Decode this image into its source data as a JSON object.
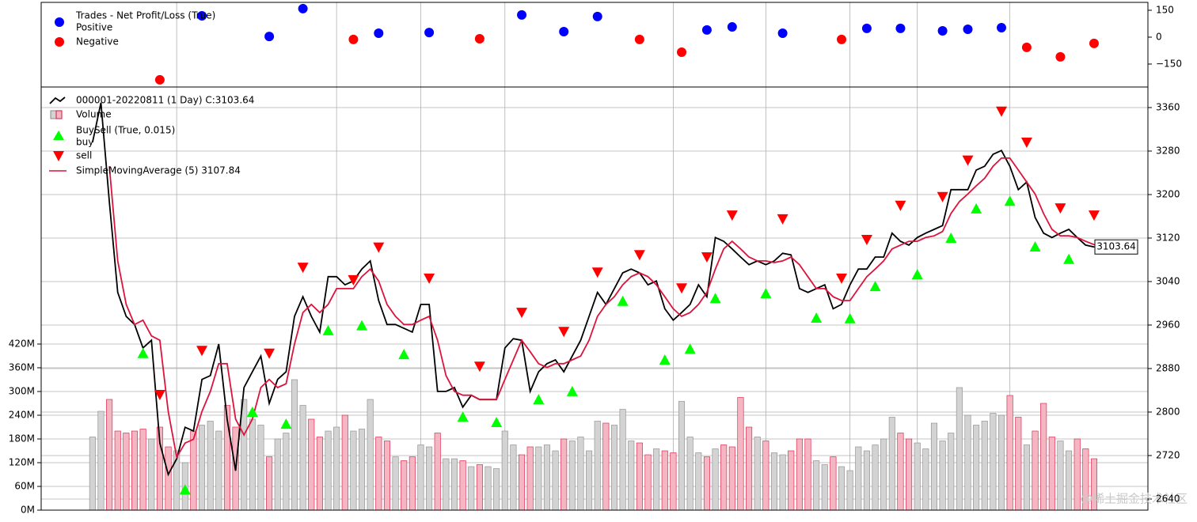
{
  "chart_data": [
    {
      "type": "scatter",
      "legend_title": "Trades - Net Profit/Loss (True)",
      "legend": "upper left",
      "xlim": [
        -6.1,
        125.4
      ],
      "ylim": [
        -278,
        194
      ],
      "yticks": [
        150,
        0,
        {
          "value": -150,
          "label": "−150"
        }
      ],
      "series": [
        {
          "name": "Positive",
          "color": "#0000ff",
          "x": [
            13,
            21,
            25,
            34,
            40,
            51,
            56,
            60,
            73,
            76,
            82,
            92,
            96,
            101,
            104,
            108
          ],
          "values": [
            119,
            4,
            159,
            22,
            26,
            124,
            31,
            115,
            40,
            57,
            22,
            49,
            49,
            35,
            44,
            53
          ]
        },
        {
          "name": "Negative",
          "color": "#ff0000",
          "x": [
            8,
            31,
            46,
            65,
            70,
            89,
            111,
            115,
            119
          ],
          "values": [
            -238,
            -13,
            -9,
            -13,
            -84,
            -13,
            -57,
            -110,
            -35
          ]
        }
      ]
    },
    {
      "type": "line",
      "legend": "upper left",
      "grid": true,
      "xlim": [
        -6.1,
        125.4
      ],
      "xticks": [
        10,
        29,
        39,
        49,
        69,
        80,
        90,
        98,
        109
      ],
      "ylim": [
        2619.6,
        3397.8
      ],
      "yticks": [
        2640,
        2720,
        2800,
        2880,
        2960,
        3040,
        3120,
        3200,
        3280,
        3360
      ],
      "y2lim": [
        0,
        1070
      ],
      "y2ticks": [
        {
          "value": 0,
          "label": "0M"
        },
        {
          "value": 60,
          "label": "60M"
        },
        {
          "value": 120,
          "label": "120M"
        },
        {
          "value": 180,
          "label": "180M"
        },
        {
          "value": 240,
          "label": "240M"
        },
        {
          "value": 300,
          "label": "300M"
        },
        {
          "value": 360,
          "label": "360M"
        },
        {
          "value": 420,
          "label": "420M"
        }
      ],
      "buysell_label": "BuySell (True, 0.015)",
      "last_label": "3103.64",
      "watermark": "@稀土掘金技术社区",
      "x": [
        0,
        1,
        2,
        3,
        4,
        5,
        6,
        7,
        8,
        9,
        10,
        11,
        12,
        13,
        14,
        15,
        16,
        17,
        18,
        19,
        20,
        21,
        22,
        23,
        24,
        25,
        26,
        27,
        28,
        29,
        30,
        31,
        32,
        33,
        34,
        35,
        36,
        37,
        38,
        39,
        40,
        41,
        42,
        43,
        44,
        45,
        46,
        47,
        48,
        49,
        50,
        51,
        52,
        53,
        54,
        55,
        56,
        57,
        58,
        59,
        60,
        61,
        62,
        63,
        64,
        65,
        66,
        67,
        68,
        69,
        70,
        71,
        72,
        73,
        74,
        75,
        76,
        77,
        78,
        79,
        80,
        81,
        82,
        83,
        84,
        85,
        86,
        87,
        88,
        89,
        90,
        91,
        92,
        93,
        94,
        95,
        96,
        97,
        98,
        99,
        100,
        101,
        102,
        103,
        104,
        105,
        106,
        107,
        108,
        109,
        110,
        111,
        112,
        113,
        114,
        115,
        116,
        117,
        118,
        119
      ],
      "series": [
        {
          "name": "000001-20220811 (1 Day) C:3103.64",
          "kind": "line",
          "color": "#000000",
          "values": [
            3296,
            3369,
            3187,
            3020,
            2976,
            2961,
            2918,
            2932,
            2743,
            2685,
            2714,
            2772,
            2765,
            2860,
            2867,
            2925,
            2787,
            2692,
            2845,
            2874,
            2903,
            2816,
            2860,
            2874,
            2976,
            3012,
            2976,
            2947,
            3049,
            3049,
            3034,
            3041,
            3063,
            3078,
            3005,
            2961,
            2961,
            2954,
            2947,
            2998,
            2998,
            2838,
            2838,
            2845,
            2809,
            2831,
            2823,
            2823,
            2823,
            2918,
            2935,
            2932,
            2838,
            2874,
            2889,
            2896,
            2874,
            2903,
            2932,
            2976,
            3020,
            2998,
            3027,
            3056,
            3063,
            3056,
            3034,
            3041,
            2990,
            2969,
            2983,
            2998,
            3034,
            3012,
            3121,
            3114,
            3100,
            3085,
            3071,
            3078,
            3071,
            3078,
            3092,
            3089,
            3027,
            3020,
            3027,
            3034,
            2990,
            2998,
            3034,
            3063,
            3063,
            3085,
            3085,
            3129,
            3114,
            3107,
            3121,
            3129,
            3136,
            3143,
            3209,
            3209,
            3209,
            3245,
            3252,
            3274,
            3281,
            3252,
            3209,
            3223,
            3158,
            3129,
            3121,
            3129,
            3136,
            3121,
            3107,
            3103.64
          ]
        },
        {
          "name": "Volume",
          "kind": "bar",
          "axis": "y2",
          "color": "#d3d3d3",
          "down_color": "#f4b6c2",
          "values": [
            185,
            250,
            280,
            200,
            195,
            200,
            205,
            180,
            210,
            160,
            150,
            120,
            200,
            215,
            225,
            200,
            265,
            210,
            280,
            230,
            215,
            135,
            180,
            195,
            330,
            265,
            230,
            185,
            200,
            210,
            240,
            200,
            205,
            280,
            185,
            175,
            135,
            125,
            135,
            165,
            160,
            195,
            130,
            130,
            125,
            110,
            115,
            110,
            105,
            200,
            165,
            140,
            160,
            160,
            165,
            150,
            180,
            175,
            185,
            150,
            225,
            220,
            215,
            255,
            175,
            170,
            140,
            155,
            150,
            145,
            275,
            185,
            145,
            135,
            155,
            165,
            160,
            285,
            210,
            185,
            175,
            145,
            140,
            150,
            180,
            180,
            125,
            115,
            135,
            110,
            100,
            160,
            150,
            165,
            180,
            235,
            195,
            180,
            170,
            155,
            220,
            175,
            195,
            310,
            240,
            215,
            225,
            245,
            240,
            290,
            235,
            165,
            200,
            270,
            185,
            175,
            150,
            180,
            155,
            130
          ]
        },
        {
          "name": "buy",
          "kind": "marker",
          "marker": "up",
          "color": "#00ff00",
          "x": [
            6,
            11,
            19,
            23,
            28,
            32,
            37,
            44,
            48,
            53,
            57,
            63,
            68,
            71,
            74,
            80,
            86,
            90,
            93,
            98,
            102,
            105,
            109,
            112,
            116
          ],
          "values": [
            2908,
            2657,
            2800,
            2778,
            2950,
            2959,
            2906,
            2791,
            2781,
            2823,
            2838,
            3004,
            2896,
            2916,
            3009,
            3018,
            2973,
            2972,
            3031,
            3053,
            3120,
            3174,
            3188,
            3104,
            3081
          ]
        },
        {
          "name": "sell",
          "kind": "marker",
          "marker": "down",
          "color": "#ff0000",
          "x": [
            8,
            13,
            21,
            25,
            31,
            34,
            40,
            46,
            51,
            56,
            60,
            65,
            70,
            73,
            76,
            82,
            89,
            92,
            96,
            101,
            104,
            108,
            111,
            115,
            119
          ],
          "values": [
            2832,
            2913,
            2908,
            3066,
            3043,
            3103,
            3046,
            2884,
            2983,
            2948,
            3057,
            3089,
            3028,
            3085,
            3162,
            3155,
            3046,
            3117,
            3180,
            3196,
            3263,
            3353,
            3296,
            3175,
            3162
          ]
        },
        {
          "name": "SimpleMovingAverage (5) 3107.84",
          "kind": "line",
          "color": "#dc143c",
          "values": [
            null,
            null,
            3252,
            3078,
            2998,
            2961,
            2969,
            2940,
            2932,
            2801,
            2717,
            2743,
            2750,
            2801,
            2838,
            2889,
            2889,
            2787,
            2758,
            2787,
            2845,
            2860,
            2845,
            2852,
            2925,
            2983,
            2998,
            2983,
            2998,
            3027,
            3027,
            3027,
            3049,
            3063,
            3041,
            2998,
            2976,
            2961,
            2961,
            2969,
            2976,
            2932,
            2867,
            2838,
            2831,
            2831,
            2823,
            2823,
            2823,
            2860,
            2896,
            2932,
            2911,
            2889,
            2882,
            2889,
            2889,
            2896,
            2903,
            2932,
            2976,
            2998,
            3012,
            3034,
            3049,
            3056,
            3049,
            3034,
            3012,
            2990,
            2976,
            2983,
            2998,
            3020,
            3063,
            3100,
            3114,
            3100,
            3085,
            3078,
            3078,
            3075,
            3078,
            3085,
            3071,
            3049,
            3027,
            3027,
            3012,
            3005,
            3005,
            3027,
            3049,
            3063,
            3078,
            3100,
            3107,
            3114,
            3114,
            3121,
            3124,
            3132,
            3165,
            3187,
            3201,
            3216,
            3230,
            3252,
            3267,
            3267,
            3245,
            3223,
            3201,
            3165,
            3136,
            3124,
            3124,
            3121,
            3114,
            3107.84
          ]
        }
      ]
    }
  ]
}
